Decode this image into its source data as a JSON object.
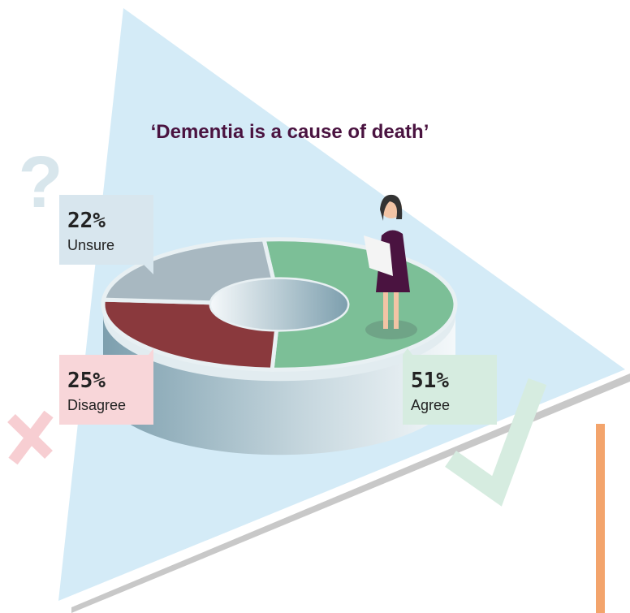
{
  "chart_data": {
    "type": "pie",
    "title": "‘Dementia is a cause of death’",
    "categories": [
      "Agree",
      "Disagree",
      "Unsure"
    ],
    "values": [
      51,
      25,
      22
    ],
    "value_labels": [
      "51%",
      "25%",
      "22%"
    ],
    "colors": [
      "#7cbf97",
      "#8a393d",
      "#a8b8c1"
    ]
  }
}
